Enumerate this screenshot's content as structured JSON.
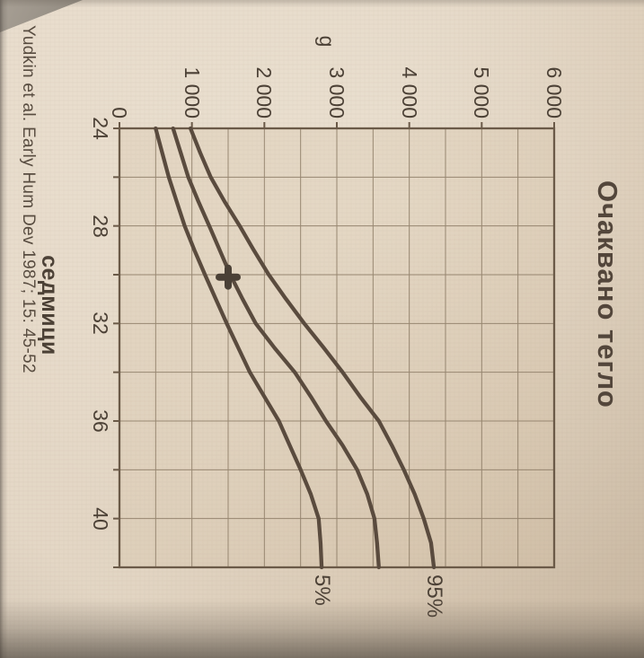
{
  "photo": {
    "paper_color": "#e0d2c0",
    "plot_fill_tint": "#cdb595",
    "ink_color": "#4c4136",
    "grid_color": "#8b7a64",
    "axis_color": "#6b5a48",
    "curve_color": "#5a4b3e",
    "marker_color": "#4a4036"
  },
  "chart_data": {
    "type": "line",
    "title": "Очаквано тегло",
    "ylabel": "g",
    "xlabel": "седмици",
    "xlim": [
      24,
      42
    ],
    "ylim": [
      0,
      6000
    ],
    "grid": {
      "on": true,
      "x_step": 2,
      "y_step": 500
    },
    "x": [
      24,
      25,
      26,
      27,
      28,
      29,
      30,
      31,
      32,
      33,
      34,
      35,
      36,
      37,
      38,
      39,
      40,
      41,
      42
    ],
    "series": [
      {
        "label": "5%",
        "values": [
          500,
          590,
          680,
          790,
          900,
          1035,
          1180,
          1330,
          1480,
          1640,
          1800,
          2000,
          2200,
          2350,
          2500,
          2640,
          2750,
          2775,
          2790
        ]
      },
      {
        "label": "",
        "values": [
          740,
          845,
          950,
          1090,
          1240,
          1385,
          1530,
          1700,
          1880,
          2140,
          2420,
          2640,
          2850,
          3080,
          3280,
          3420,
          3520,
          3555,
          3580
        ]
      },
      {
        "label": "95%",
        "values": [
          980,
          1115,
          1260,
          1450,
          1660,
          1855,
          2060,
          2300,
          2550,
          2820,
          3080,
          3320,
          3580,
          3760,
          3925,
          4075,
          4200,
          4300,
          4340
        ]
      }
    ],
    "legend_position": "right-of-curve-ends",
    "x_ticks": [
      {
        "week": 24,
        "label": "24"
      },
      {
        "week": 28,
        "label": "28"
      },
      {
        "week": 32,
        "label": "32"
      },
      {
        "week": 36,
        "label": "36"
      },
      {
        "week": 40,
        "label": "40"
      }
    ],
    "y_ticks": [
      {
        "g": 0,
        "label": "0"
      },
      {
        "g": 1000,
        "label": "1 000"
      },
      {
        "g": 2000,
        "label": "2 000"
      },
      {
        "g": 3000,
        "label": "3 000"
      },
      {
        "g": 4000,
        "label": "4 000"
      },
      {
        "g": 5000,
        "label": "5 000"
      },
      {
        "g": 6000,
        "label": "6 000"
      }
    ],
    "marker": {
      "week": 30.1,
      "grams": 1500,
      "shape": "plus"
    }
  },
  "citation": "Yudkin et al. Early Hum Dev 1987; 15: 45-52",
  "orientation_note": "photo rotated 90deg clockwise"
}
